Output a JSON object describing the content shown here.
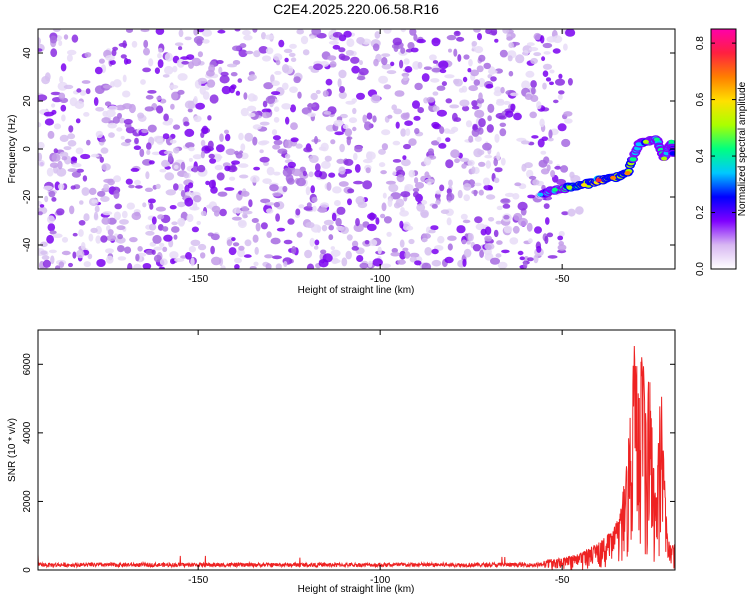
{
  "title": "C2E4.2025.220.06.58.R16",
  "chart_data": [
    {
      "type": "heatmap",
      "xlabel": "Height of straight line (km)",
      "ylabel": "Frequency (Hz)",
      "xlim": [
        -194,
        -19
      ],
      "ylim": [
        -50,
        50
      ],
      "xticks": [
        -150,
        -100,
        -50
      ],
      "yticks": [
        -40,
        -20,
        0,
        20,
        40
      ],
      "colorbar": {
        "label": "Normalized spectral amplitude",
        "range": [
          0,
          0.85
        ],
        "ticks": [
          0.0,
          0.2,
          0.4,
          0.6,
          0.8
        ],
        "colors": [
          "#ffffff",
          "#d8b8f2",
          "#7f00ff",
          "#0000ff",
          "#00c8ff",
          "#00ff80",
          "#aaff00",
          "#ffe000",
          "#ff7f00",
          "#ff2040",
          "#ff00aa"
        ]
      },
      "noise_region": {
        "x_end": -52,
        "amplitude": 0.0
      },
      "signal_track": [
        {
          "x": -56,
          "y": -19,
          "amp": 0.3
        },
        {
          "x": -52,
          "y": -17,
          "amp": 0.45
        },
        {
          "x": -48,
          "y": -16,
          "amp": 0.55
        },
        {
          "x": -44,
          "y": -15,
          "amp": 0.6
        },
        {
          "x": -40,
          "y": -13,
          "amp": 0.75
        },
        {
          "x": -36,
          "y": -12,
          "amp": 0.65
        },
        {
          "x": -32,
          "y": -10,
          "amp": 0.7
        },
        {
          "x": -29,
          "y": 2,
          "amp": 0.35
        },
        {
          "x": -27,
          "y": 3,
          "amp": 0.55
        },
        {
          "x": -24,
          "y": 4,
          "amp": 0.45
        },
        {
          "x": -22,
          "y": -4,
          "amp": 0.5
        },
        {
          "x": -20,
          "y": 3,
          "amp": 0.4
        },
        {
          "x": -19.5,
          "y": -2,
          "amp": 0.35
        }
      ]
    },
    {
      "type": "line",
      "xlabel": "Height of straight line (km)",
      "ylabel": "SNR (10 * v/v)",
      "xlim": [
        -194,
        -19
      ],
      "ylim": [
        0,
        7000
      ],
      "xticks": [
        -150,
        -100,
        -50
      ],
      "yticks": [
        0,
        2000,
        4000,
        6000
      ],
      "color": "#ee2222",
      "noise_floor": 150,
      "noise_spread": 120,
      "envelope": [
        {
          "x": -194,
          "y": 250
        },
        {
          "x": -60,
          "y": 250
        },
        {
          "x": -50,
          "y": 350
        },
        {
          "x": -45,
          "y": 500
        },
        {
          "x": -40,
          "y": 800
        },
        {
          "x": -36,
          "y": 1200
        },
        {
          "x": -34,
          "y": 1700
        },
        {
          "x": -32,
          "y": 3500
        },
        {
          "x": -31,
          "y": 5000
        },
        {
          "x": -30,
          "y": 6900
        },
        {
          "x": -29,
          "y": 5200
        },
        {
          "x": -28,
          "y": 6900
        },
        {
          "x": -27,
          "y": 4500
        },
        {
          "x": -26,
          "y": 6300
        },
        {
          "x": -25,
          "y": 3200
        },
        {
          "x": -24,
          "y": 2200
        },
        {
          "x": -23,
          "y": 6000
        },
        {
          "x": -22,
          "y": 3000
        },
        {
          "x": -21,
          "y": 900
        },
        {
          "x": -20,
          "y": 700
        },
        {
          "x": -19,
          "y": 800
        }
      ]
    }
  ]
}
